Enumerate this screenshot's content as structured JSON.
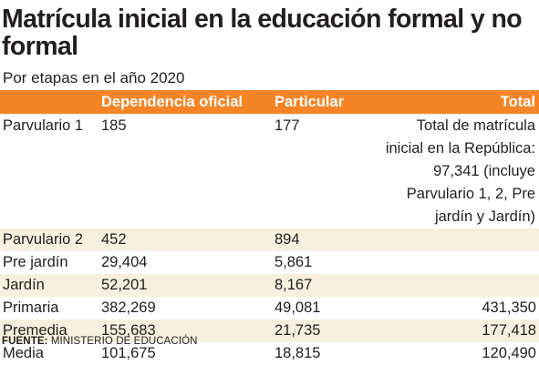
{
  "title": "Matrícula inicial en la educación formal y no formal",
  "subtitle": "Por etapas en el año 2020",
  "columns": [
    "",
    "Dependencia oficial",
    "Particular",
    "Total"
  ],
  "rows": [
    {
      "etapa": "Parvulario 1",
      "oficial": "185",
      "particular": "177",
      "total": "Total de matrícula inicial en la República: 97,341 (incluye Parvulario 1, 2, Pre jardín y Jardín)"
    },
    {
      "etapa": "Parvulario 2",
      "oficial": "452",
      "particular": "894",
      "total": ""
    },
    {
      "etapa": "Pre jardín",
      "oficial": "29,404",
      "particular": "5,861",
      "total": ""
    },
    {
      "etapa": "Jardín",
      "oficial": "52,201",
      "particular": "8,167",
      "total": ""
    },
    {
      "etapa": "Primaria",
      "oficial": "382,269",
      "particular": "49,081",
      "total": "431,350"
    },
    {
      "etapa": "Premedia",
      "oficial": "155,683",
      "particular": "21,735",
      "total": "177,418"
    },
    {
      "etapa": "Media",
      "oficial": "101,675",
      "particular": "18,815",
      "total": "120,490"
    }
  ],
  "source": {
    "label": "FUENTE:",
    "text": "MINISTERIO DE EDUCACIÓN"
  },
  "colors": {
    "header": "#f58426",
    "shade": "#f7f0dd",
    "text": "#231f20"
  },
  "chart_data": {
    "type": "table",
    "title": "Matrícula inicial en la educación formal y no formal",
    "subtitle": "Por etapas en el año 2020",
    "columns": [
      "Dependencia oficial",
      "Particular",
      "Total"
    ],
    "categories": [
      "Parvulario 1",
      "Parvulario 2",
      "Pre jardín",
      "Jardín",
      "Primaria",
      "Premedia",
      "Media"
    ],
    "series": [
      {
        "name": "Dependencia oficial",
        "values": [
          185,
          452,
          29404,
          52201,
          382269,
          155683,
          101675
        ]
      },
      {
        "name": "Particular",
        "values": [
          177,
          894,
          5861,
          8167,
          49081,
          21735,
          18815
        ]
      },
      {
        "name": "Total",
        "values": [
          null,
          null,
          null,
          null,
          431350,
          177418,
          120490
        ]
      }
    ],
    "annotation": "Total de matrícula inicial en la República: 97,341 (incluye Parvulario 1, 2, Pre jardín y Jardín)"
  }
}
